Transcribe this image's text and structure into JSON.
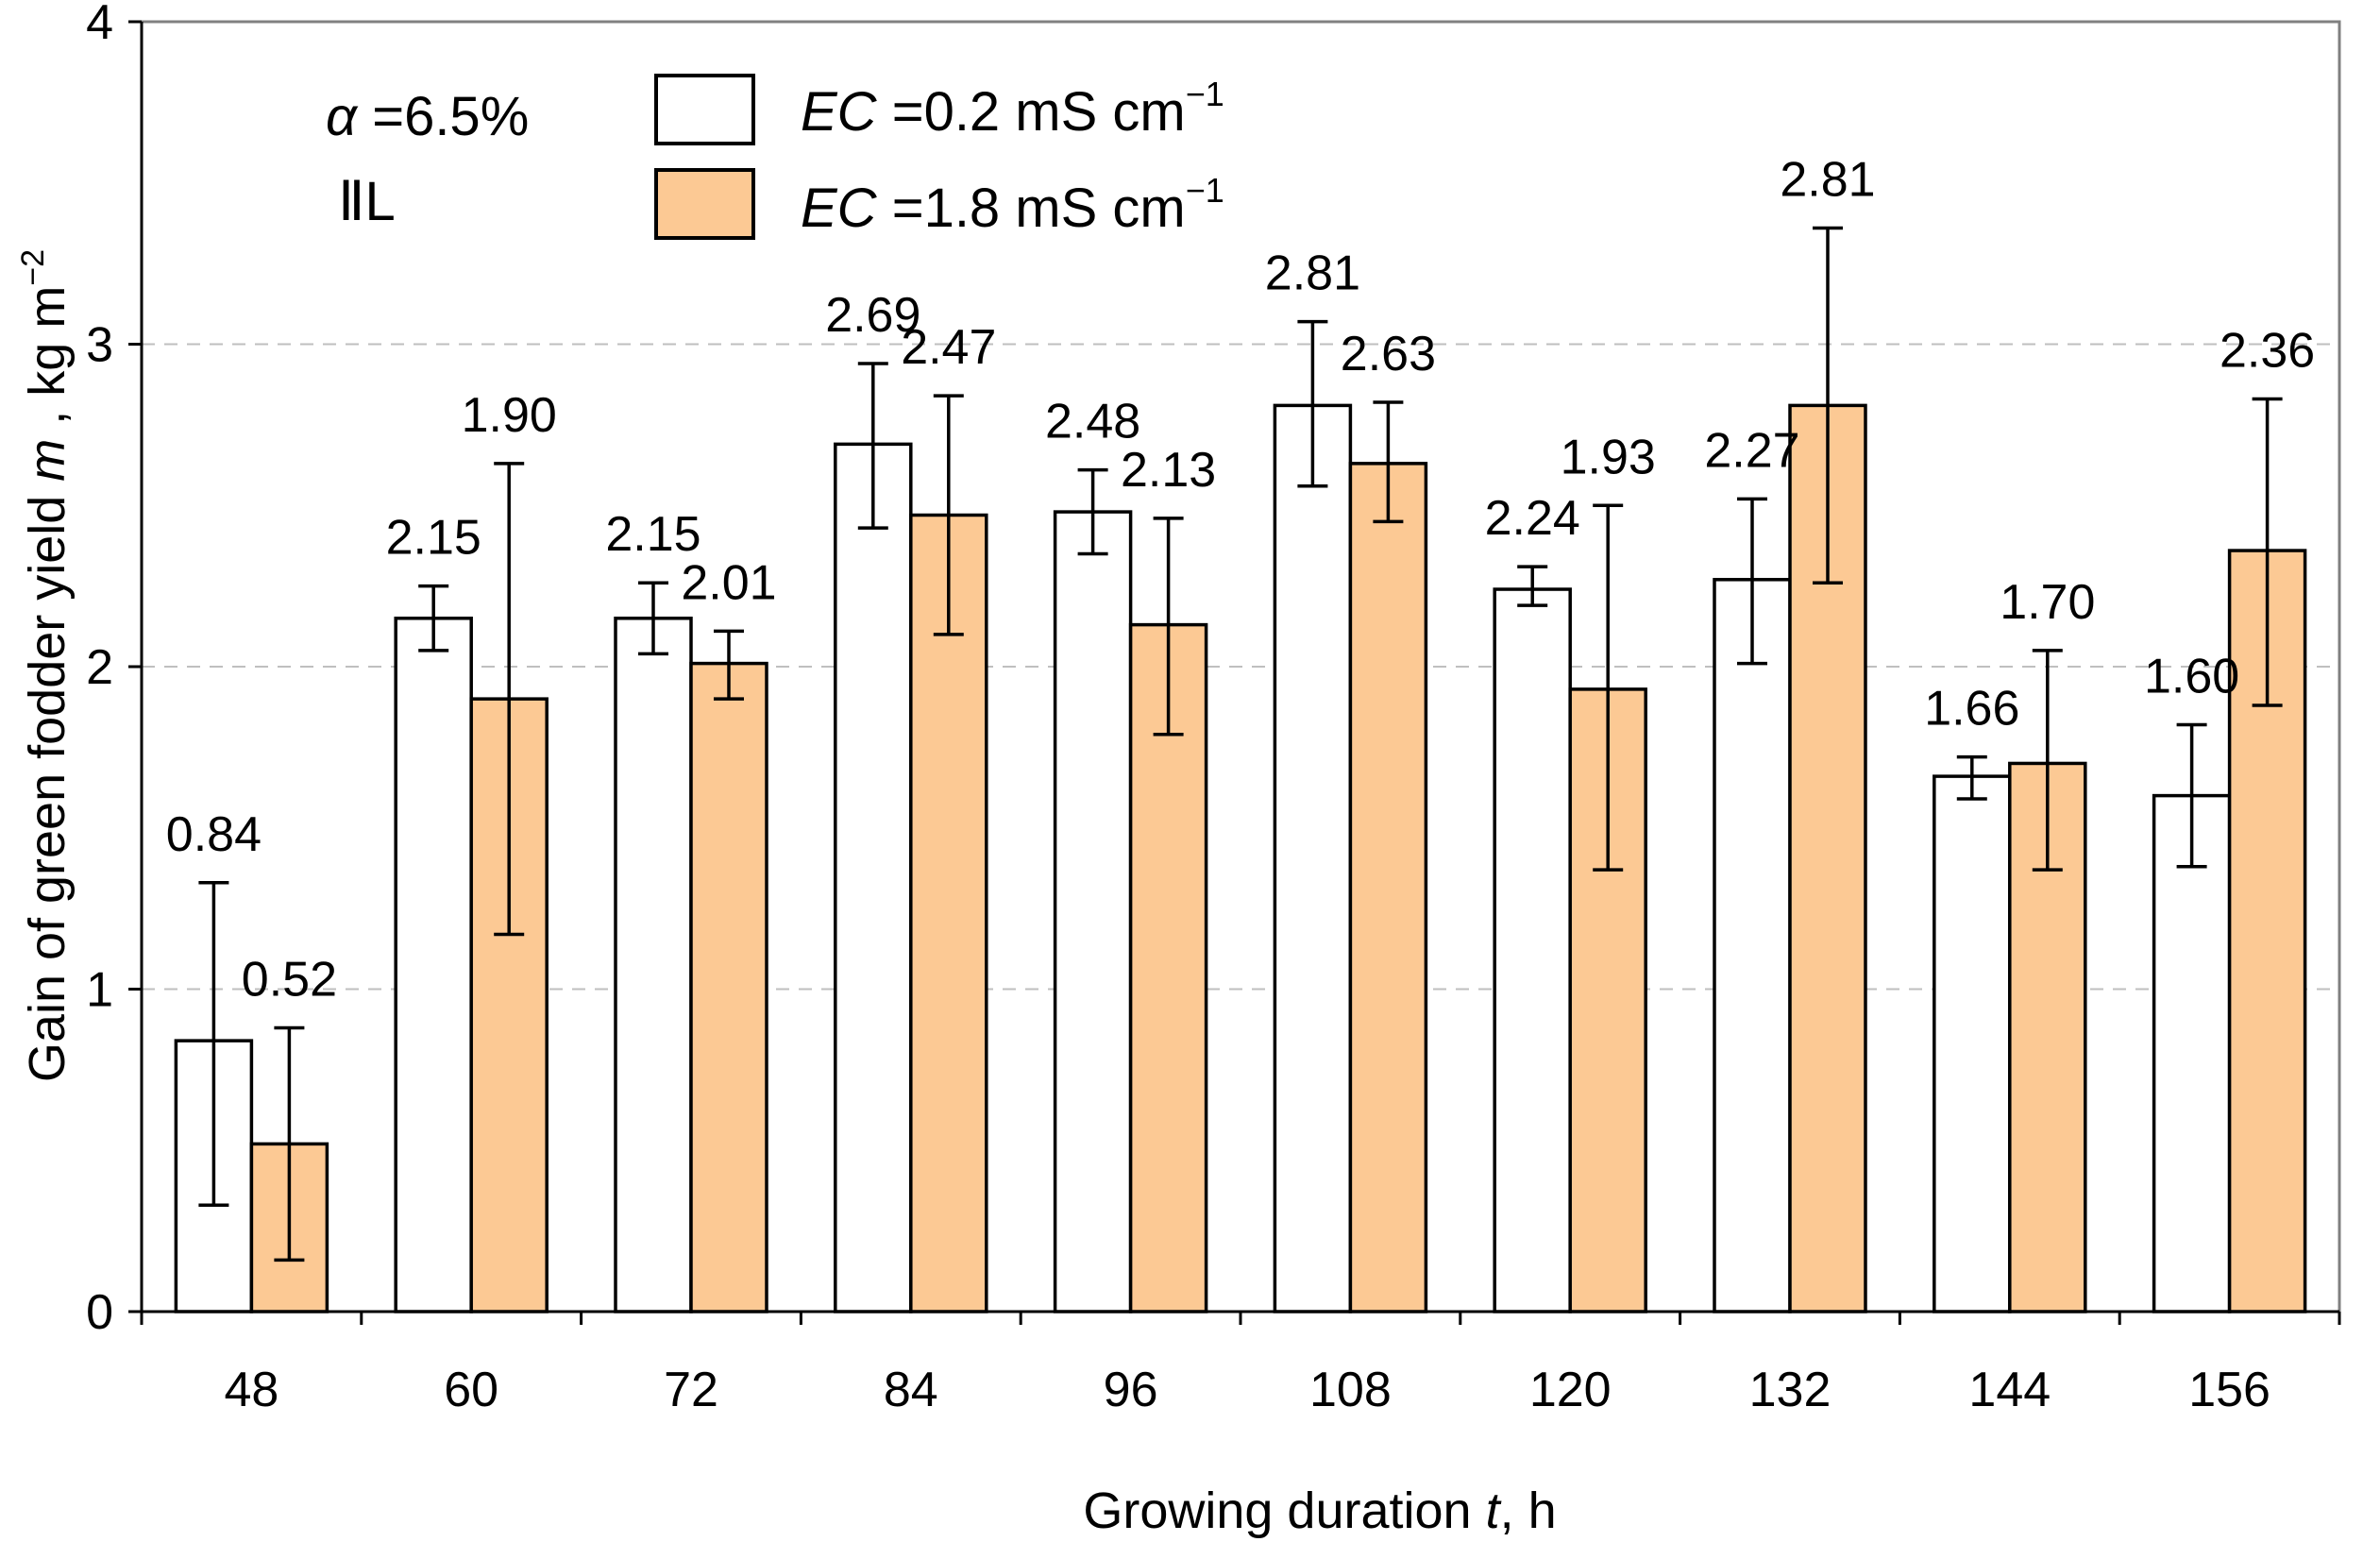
{
  "chart_data": {
    "type": "bar",
    "categories": [
      "48",
      "60",
      "72",
      "84",
      "96",
      "108",
      "120",
      "132",
      "144",
      "156"
    ],
    "series": [
      {
        "name": "EC =0.2 mS cm−1",
        "name_italic": "EC",
        "name_rest": " =0.2 mS cm",
        "name_sup": "−1",
        "color": "#ffffff",
        "values": [
          0.84,
          2.15,
          2.15,
          2.69,
          2.48,
          2.81,
          2.24,
          2.27,
          1.66,
          1.6
        ],
        "labels": [
          "0.84",
          "2.15",
          "2.15",
          "2.69",
          "2.48",
          "2.81",
          "2.24",
          "2.27",
          "1.66",
          "1.60"
        ],
        "err_low": [
          0.33,
          2.05,
          2.04,
          2.43,
          2.35,
          2.56,
          2.19,
          2.01,
          1.59,
          1.38
        ],
        "err_high": [
          1.33,
          2.25,
          2.26,
          2.94,
          2.61,
          3.07,
          2.31,
          2.52,
          1.72,
          1.82
        ]
      },
      {
        "name": "EC =1.8 mS cm−1",
        "name_italic": "EC",
        "name_rest": " =1.8 mS cm",
        "name_sup": "−1",
        "color": "#fcc994",
        "values": [
          0.52,
          1.9,
          2.01,
          2.47,
          2.13,
          2.63,
          1.93,
          2.81,
          1.7,
          2.36
        ],
        "labels": [
          "0.52",
          "1.90",
          "2.01",
          "2.47",
          "2.13",
          "2.63",
          "1.93",
          "2.81",
          "1.70",
          "2.36"
        ],
        "err_low": [
          0.16,
          1.17,
          1.9,
          2.1,
          1.79,
          2.45,
          1.37,
          2.26,
          1.37,
          1.88
        ],
        "err_high": [
          0.88,
          2.63,
          2.11,
          2.84,
          2.46,
          2.82,
          2.5,
          3.36,
          2.05,
          2.83
        ]
      }
    ],
    "ylim": [
      0,
      4
    ],
    "yticks": [
      "0",
      "1",
      "2",
      "3",
      "4"
    ],
    "grid": "horizontal dashed",
    "legend_position": "top-left",
    "xlabel": {
      "text": "Growing duration ",
      "var": "t",
      "unit": ", h"
    },
    "ylabel": {
      "text": "Gain of green fodder yield ",
      "var": "m",
      "unit": " , kg m",
      "sup": "−2"
    },
    "annotations": {
      "alpha_symbol": "α",
      "alpha_value": " =6.5%",
      "light_mark": "ⅡL"
    }
  }
}
